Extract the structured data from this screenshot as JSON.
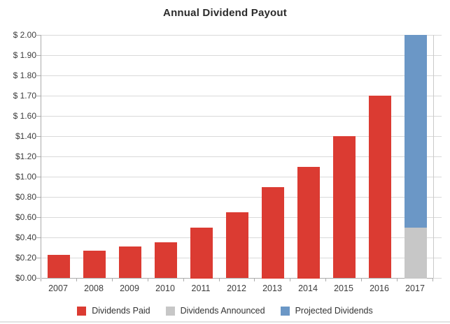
{
  "title": "Annual Dividend Payout",
  "colors": {
    "paid": "#db3b32",
    "announced": "#c7c7c7",
    "projected": "#6b97c6",
    "gridline": "#d9d9d9",
    "axis": "#ababab",
    "text": "#3d3d3d"
  },
  "legend": [
    {
      "label": "Dividends Paid",
      "color": "#db3b32"
    },
    {
      "label": "Dividends Announced",
      "color": "#c7c7c7"
    },
    {
      "label": "Projected Dividends",
      "color": "#6b97c6"
    }
  ],
  "chart_data": {
    "type": "bar",
    "stacked": true,
    "title": "Annual Dividend Payout",
    "categories": [
      "2007",
      "2008",
      "2009",
      "2010",
      "2011",
      "2012",
      "2013",
      "2014",
      "2015",
      "2016",
      "2017"
    ],
    "series": [
      {
        "name": "Dividends Paid",
        "color": "#db3b32",
        "values": [
          0.23,
          0.27,
          0.31,
          0.35,
          0.5,
          0.65,
          0.9,
          1.1,
          1.4,
          1.7,
          0
        ]
      },
      {
        "name": "Dividends Announced",
        "color": "#c7c7c7",
        "values": [
          0,
          0,
          0,
          0,
          0,
          0,
          0,
          0,
          0,
          0,
          0.5
        ]
      },
      {
        "name": "Projected Dividends",
        "color": "#6b97c6",
        "values": [
          0,
          0,
          0,
          0,
          0,
          0,
          0,
          0,
          0,
          0,
          1.5
        ]
      }
    ],
    "y_tick_labels": [
      "$ 2.00",
      "$ 1.90",
      "$ 1.80",
      "$ 1.70",
      "$ 1.60",
      "$1.40",
      "$1.20",
      "$1.00",
      "$0.80",
      "$0.60",
      "$0.40",
      "$0.20",
      "$0.00"
    ],
    "y_tick_values": [
      2.0,
      1.9,
      1.8,
      1.7,
      1.6,
      1.4,
      1.2,
      1.0,
      0.8,
      0.6,
      0.4,
      0.2,
      0.0
    ],
    "ylim": [
      0,
      2.0
    ],
    "grid": true,
    "legend_position": "bottom",
    "axis_note": "y ticks evenly spaced on screen: $0.10 steps above $1.60, $0.20 steps below"
  }
}
